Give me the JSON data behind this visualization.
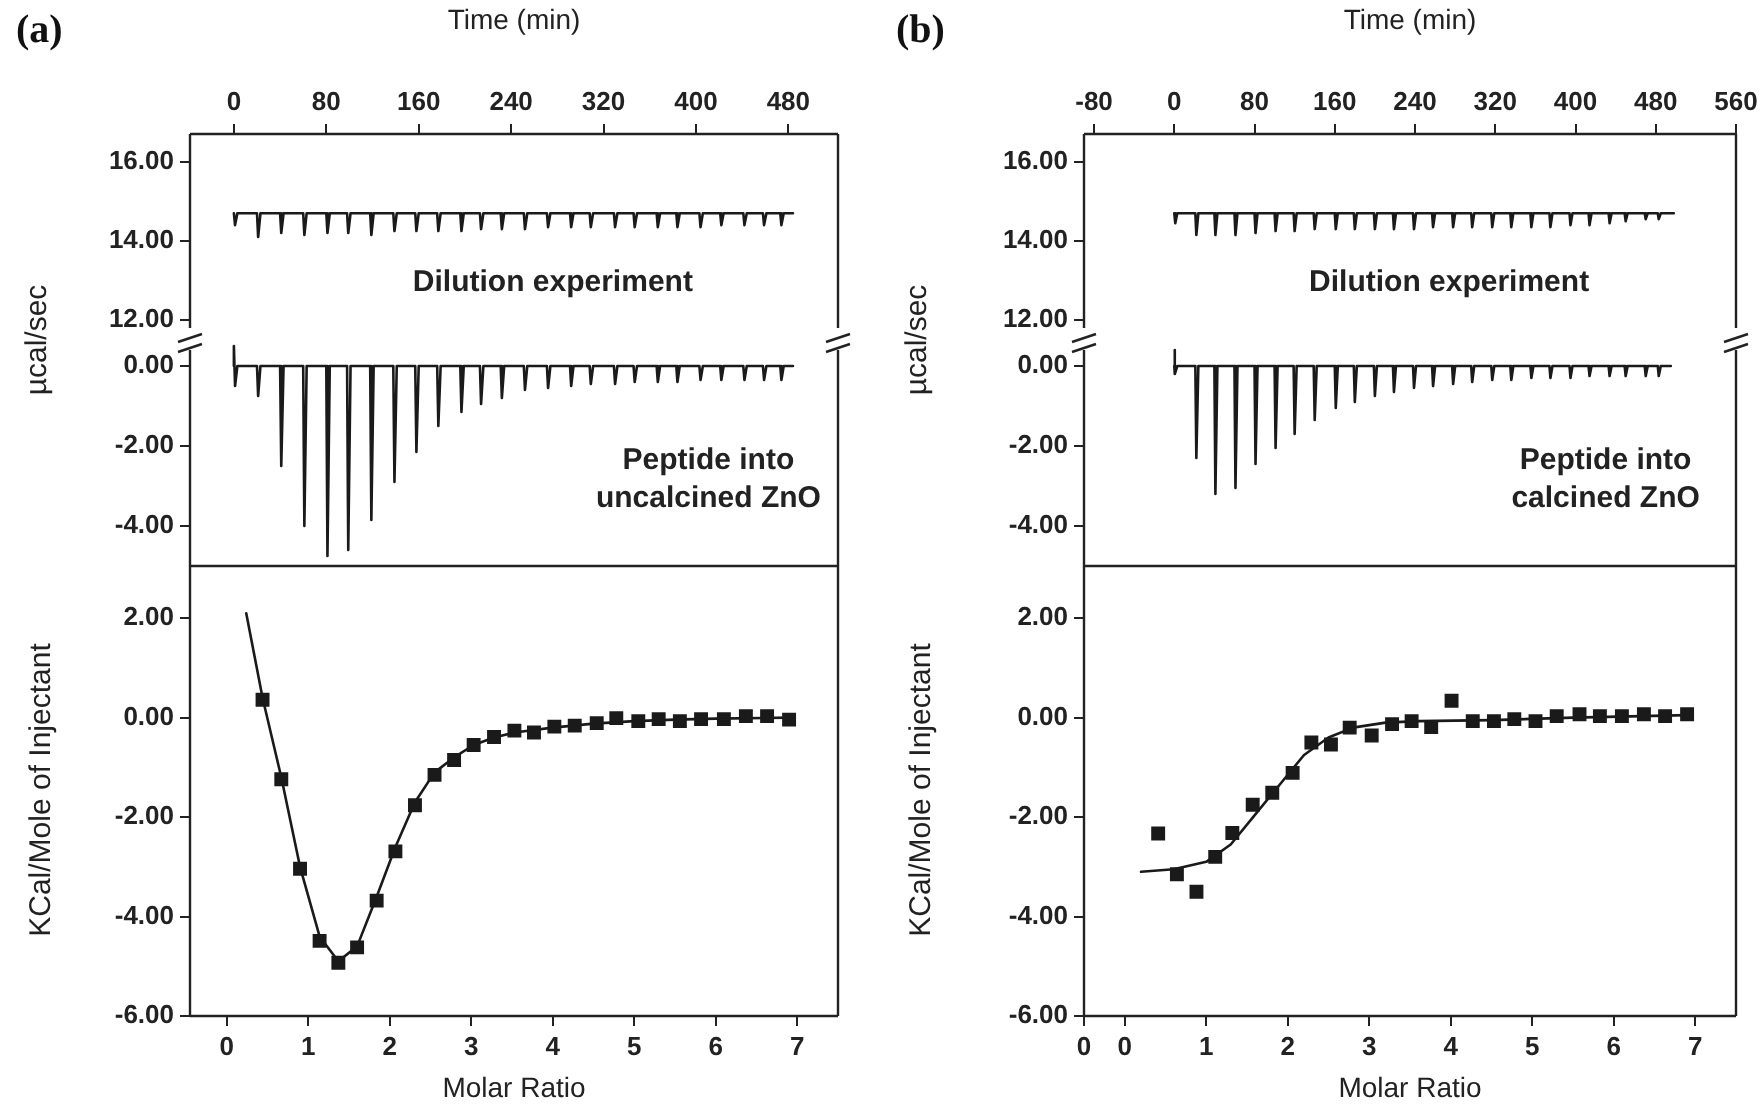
{
  "chart_data": [
    {
      "type": "line",
      "title": "(a)",
      "xlabel": "Time (min)",
      "annotations": [
        "Dilution experiment"
      ],
      "xlim": [
        -38,
        523
      ],
      "xticks": [
        0,
        80,
        160,
        240,
        320,
        400,
        480
      ],
      "ylim": [
        11.5,
        16.7
      ],
      "yticks": [
        {
          "value": 12,
          "label": "12.00"
        },
        {
          "value": 14,
          "label": "14.00"
        },
        {
          "value": 16,
          "label": "16.00"
        }
      ],
      "series": [
        {
          "color": "#1a1a1a",
          "x": [
            0,
            1,
            3,
            20,
            21,
            23,
            40,
            41,
            43,
            60,
            61,
            63,
            80,
            81,
            83,
            98,
            99,
            101,
            118,
            119,
            121,
            138,
            139,
            141,
            157,
            158,
            160,
            176,
            177,
            179,
            196,
            197,
            199,
            213,
            214,
            216,
            231,
            232,
            234,
            251,
            252,
            254,
            271,
            272,
            274,
            291,
            292,
            294,
            308,
            309,
            311,
            329,
            330,
            332,
            346,
            347,
            349,
            366,
            367,
            369,
            383,
            384,
            386,
            403,
            404,
            406,
            421,
            422,
            424,
            441,
            442,
            444,
            458,
            459,
            461,
            473,
            474,
            476,
            484
          ],
          "values": [
            14.7,
            14.4,
            14.7,
            14.7,
            14.1,
            14.7,
            14.7,
            14.2,
            14.7,
            14.7,
            14.15,
            14.7,
            14.7,
            14.2,
            14.7,
            14.7,
            14.2,
            14.7,
            14.7,
            14.15,
            14.7,
            14.7,
            14.25,
            14.7,
            14.7,
            14.25,
            14.7,
            14.7,
            14.25,
            14.7,
            14.7,
            14.25,
            14.7,
            14.7,
            14.3,
            14.7,
            14.7,
            14.3,
            14.7,
            14.7,
            14.3,
            14.7,
            14.7,
            14.35,
            14.7,
            14.7,
            14.35,
            14.7,
            14.7,
            14.35,
            14.7,
            14.7,
            14.35,
            14.7,
            14.7,
            14.35,
            14.7,
            14.7,
            14.35,
            14.7,
            14.7,
            14.35,
            14.7,
            14.7,
            14.35,
            14.7,
            14.7,
            14.4,
            14.7,
            14.7,
            14.4,
            14.7,
            14.7,
            14.4,
            14.7,
            14.7,
            14.4,
            14.7,
            14.7
          ]
        }
      ]
    },
    {
      "type": "line",
      "ylabel": "µcal/sec",
      "annotations": [
        "Peptide into uncalcined ZnO"
      ],
      "tick_labels": "y",
      "xlim": [
        -38,
        523
      ],
      "xticks": [
        0,
        80,
        160,
        240,
        320,
        400,
        480
      ],
      "ylim": [
        -5,
        0.65
      ],
      "yticks": [
        {
          "value": -4,
          "label": "-4.00"
        },
        {
          "value": -2,
          "label": "-2.00"
        },
        {
          "value": 0,
          "label": "0.00"
        }
      ],
      "series": [
        {
          "color": "#1a1a1a",
          "x": [
            0,
            0,
            1,
            3,
            20,
            21,
            23,
            40,
            41,
            43,
            60,
            61,
            63,
            80,
            81,
            83,
            98,
            99,
            101,
            118,
            119,
            121,
            138,
            139,
            141,
            157,
            158,
            160,
            176,
            177,
            179,
            196,
            197,
            199,
            213,
            214,
            216,
            231,
            232,
            234,
            251,
            252,
            254,
            271,
            272,
            274,
            291,
            292,
            294,
            308,
            309,
            311,
            329,
            330,
            332,
            346,
            347,
            349,
            366,
            367,
            369,
            383,
            384,
            386,
            403,
            404,
            406,
            421,
            422,
            424,
            441,
            442,
            444,
            458,
            459,
            461,
            473,
            474,
            476,
            484
          ],
          "values": [
            0,
            0.5,
            -0.5,
            0,
            0,
            -0.75,
            0,
            0,
            -2.5,
            0,
            0,
            -4.0,
            0,
            0,
            -4.75,
            0,
            0,
            -4.6,
            0,
            0,
            -3.85,
            0,
            0,
            -2.9,
            0,
            0,
            -2.15,
            0,
            0,
            -1.5,
            0,
            0,
            -1.15,
            0,
            0,
            -0.95,
            0,
            0,
            -0.8,
            0,
            0,
            -0.6,
            0,
            0,
            -0.55,
            0,
            0,
            -0.5,
            0,
            0,
            -0.45,
            0,
            0,
            -0.45,
            0,
            0,
            -0.4,
            0,
            0,
            -0.4,
            0,
            0,
            -0.4,
            0,
            0,
            -0.35,
            0,
            0,
            -0.35,
            0,
            0,
            -0.35,
            0,
            0,
            -0.35,
            0,
            0,
            -0.35,
            0,
            0
          ]
        }
      ]
    },
    {
      "type": "scatter",
      "xlabel": "Molar Ratio",
      "ylabel": "KCal/Mole of Injectant",
      "xlim": [
        -0.45,
        7.5
      ],
      "xticks": [
        0,
        1,
        2,
        3,
        4,
        5,
        6,
        7
      ],
      "ylim": [
        -6,
        3.05
      ],
      "yticks": [
        {
          "value": -6,
          "label": "-6.00"
        },
        {
          "value": -4,
          "label": "-4.00"
        },
        {
          "value": -2,
          "label": "-2.00"
        },
        {
          "value": 0,
          "label": "0.00"
        },
        {
          "value": 2,
          "label": "2.00"
        }
      ],
      "series": [
        {
          "color": "#1a1a1a",
          "marker": "square",
          "x": [
            0.44,
            0.67,
            0.9,
            1.14,
            1.37,
            1.6,
            1.84,
            2.07,
            2.31,
            2.55,
            2.79,
            3.03,
            3.28,
            3.53,
            3.77,
            4.02,
            4.27,
            4.54,
            4.78,
            5.05,
            5.3,
            5.56,
            5.82,
            6.1,
            6.37,
            6.63,
            6.9
          ],
          "values": [
            0.36,
            -1.24,
            -3.04,
            -4.49,
            -4.93,
            -4.62,
            -3.68,
            -2.69,
            -1.76,
            -1.15,
            -0.85,
            -0.55,
            -0.39,
            -0.26,
            -0.3,
            -0.18,
            -0.16,
            -0.11,
            -0.01,
            -0.07,
            -0.03,
            -0.07,
            -0.03,
            -0.03,
            0.03,
            0.03,
            -0.04
          ]
        },
        {
          "type": "line",
          "color": "#1a1a1a",
          "x": [
            0.24,
            0.44,
            0.67,
            0.9,
            1.14,
            1.37,
            1.6,
            1.84,
            2.07,
            2.31,
            2.55,
            2.79,
            3.03,
            3.28,
            3.53,
            4.0,
            4.5,
            5.0,
            5.5,
            6.0,
            6.9
          ],
          "values": [
            2.1,
            0.4,
            -1.2,
            -3.0,
            -4.4,
            -4.9,
            -4.6,
            -3.6,
            -2.6,
            -1.7,
            -1.1,
            -0.8,
            -0.55,
            -0.4,
            -0.3,
            -0.2,
            -0.12,
            -0.07,
            -0.04,
            -0.02,
            0
          ]
        }
      ]
    },
    {
      "type": "line",
      "title": "(b)",
      "xlabel": "Time (min)",
      "annotations": [
        "Dilution experiment"
      ],
      "xlim": [
        -90,
        560
      ],
      "xticks": [
        -80,
        0,
        80,
        160,
        240,
        320,
        400,
        480,
        560
      ],
      "ylim": [
        11.5,
        16.7
      ],
      "yticks": [
        {
          "value": 12,
          "label": "12.00"
        },
        {
          "value": 14,
          "label": "14.00"
        },
        {
          "value": 16,
          "label": "16.00"
        }
      ],
      "series": [
        {
          "color": "#1a1a1a",
          "x": [
            0,
            1,
            3,
            21,
            22,
            24,
            40,
            41,
            43,
            60,
            61,
            63,
            80,
            81,
            83,
            100,
            101,
            103,
            119,
            120,
            122,
            139,
            140,
            142,
            160,
            161,
            163,
            179,
            180,
            182,
            199,
            200,
            202,
            218,
            219,
            221,
            238,
            239,
            241,
            257,
            258,
            260,
            277,
            278,
            280,
            296,
            297,
            299,
            316,
            317,
            319,
            335,
            336,
            338,
            355,
            356,
            358,
            374,
            375,
            377,
            394,
            395,
            397,
            413,
            414,
            416,
            433,
            434,
            436,
            449,
            450,
            452,
            469,
            470,
            472,
            482,
            483,
            485,
            498
          ],
          "values": [
            14.7,
            14.45,
            14.7,
            14.7,
            14.15,
            14.7,
            14.7,
            14.15,
            14.7,
            14.7,
            14.15,
            14.7,
            14.7,
            14.2,
            14.7,
            14.7,
            14.25,
            14.7,
            14.7,
            14.25,
            14.7,
            14.7,
            14.3,
            14.7,
            14.7,
            14.3,
            14.7,
            14.7,
            14.3,
            14.7,
            14.7,
            14.3,
            14.7,
            14.7,
            14.3,
            14.7,
            14.7,
            14.3,
            14.7,
            14.7,
            14.35,
            14.7,
            14.7,
            14.35,
            14.7,
            14.7,
            14.35,
            14.7,
            14.7,
            14.35,
            14.7,
            14.7,
            14.35,
            14.7,
            14.7,
            14.35,
            14.7,
            14.7,
            14.35,
            14.7,
            14.7,
            14.4,
            14.7,
            14.7,
            14.4,
            14.7,
            14.7,
            14.45,
            14.7,
            14.7,
            14.5,
            14.7,
            14.7,
            14.55,
            14.7,
            14.7,
            14.55,
            14.7,
            14.7
          ]
        }
      ]
    },
    {
      "type": "line",
      "ylabel": "µcal/sec",
      "annotations": [
        "Peptide into calcined ZnO"
      ],
      "tick_labels": "y",
      "xlim": [
        -90,
        560
      ],
      "xticks": [
        -80,
        0,
        80,
        160,
        240,
        320,
        400,
        480,
        560
      ],
      "ylim": [
        -5,
        0.65
      ],
      "yticks": [
        {
          "value": -4,
          "label": "-4.00"
        },
        {
          "value": -2,
          "label": "-2.00"
        },
        {
          "value": 0,
          "label": "0.00"
        }
      ],
      "series": [
        {
          "color": "#1a1a1a",
          "x": [
            0,
            0,
            1,
            3,
            21,
            22,
            24,
            40,
            41,
            43,
            60,
            61,
            63,
            80,
            81,
            83,
            100,
            101,
            103,
            119,
            120,
            122,
            139,
            140,
            142,
            160,
            161,
            163,
            179,
            180,
            182,
            199,
            200,
            202,
            218,
            219,
            221,
            238,
            239,
            241,
            257,
            258,
            260,
            277,
            278,
            280,
            296,
            297,
            299,
            316,
            317,
            319,
            335,
            336,
            338,
            355,
            356,
            358,
            374,
            375,
            377,
            394,
            395,
            397,
            413,
            414,
            416,
            433,
            434,
            436,
            449,
            450,
            452,
            469,
            470,
            472,
            482,
            483,
            485,
            495
          ],
          "values": [
            0,
            0.4,
            -0.2,
            0,
            0,
            -2.3,
            0,
            0,
            -3.2,
            0,
            0,
            -3.05,
            0,
            0,
            -2.45,
            0,
            0,
            -2.05,
            0,
            0,
            -1.7,
            0,
            0,
            -1.35,
            0,
            0,
            -1.05,
            0,
            0,
            -0.9,
            0,
            0,
            -0.75,
            0,
            0,
            -0.65,
            0,
            0,
            -0.55,
            0,
            0,
            -0.5,
            0,
            0,
            -0.45,
            0,
            0,
            -0.4,
            0,
            0,
            -0.35,
            0,
            0,
            -0.35,
            0,
            0,
            -0.3,
            0,
            0,
            -0.3,
            0,
            0,
            -0.3,
            0,
            0,
            -0.25,
            0,
            0,
            -0.25,
            0,
            0,
            -0.25,
            0,
            0,
            -0.25,
            0,
            0,
            -0.25,
            0,
            0
          ]
        }
      ]
    },
    {
      "type": "scatter",
      "xlabel": "Molar Ratio",
      "ylabel": "KCal/Mole of Injectant",
      "xlim": [
        -0.5,
        7.5
      ],
      "xticks": [
        {
          "value": -0.5,
          "label": "0"
        },
        0,
        1,
        2,
        3,
        4,
        5,
        6,
        7
      ],
      "ylim": [
        -6,
        3.05
      ],
      "yticks": [
        {
          "value": -6,
          "label": "-6.00"
        },
        {
          "value": -4,
          "label": "-4.00"
        },
        {
          "value": -2,
          "label": "-2.00"
        },
        {
          "value": 0,
          "label": "0.00"
        },
        {
          "value": 2,
          "label": "2.00"
        }
      ],
      "series": [
        {
          "color": "#1a1a1a",
          "marker": "square",
          "x": [
            0.41,
            0.64,
            0.88,
            1.11,
            1.32,
            1.57,
            1.81,
            2.06,
            2.29,
            2.53,
            2.76,
            3.03,
            3.28,
            3.52,
            3.76,
            4.01,
            4.27,
            4.53,
            4.78,
            5.04,
            5.3,
            5.58,
            5.83,
            6.1,
            6.37,
            6.63,
            6.9
          ],
          "values": [
            -2.33,
            -3.15,
            -3.5,
            -2.8,
            -2.32,
            -1.75,
            -1.51,
            -1.11,
            -0.5,
            -0.54,
            -0.2,
            -0.36,
            -0.13,
            -0.07,
            -0.19,
            0.34,
            -0.07,
            -0.07,
            -0.03,
            -0.07,
            0.03,
            0.07,
            0.03,
            0.03,
            0.07,
            0.03,
            0.07
          ]
        },
        {
          "type": "line",
          "color": "#1a1a1a",
          "x": [
            0.2,
            0.6,
            1.0,
            1.3,
            1.6,
            1.9,
            2.2,
            2.5,
            2.8,
            3.2,
            3.6,
            4.5,
            5.5,
            6.9
          ],
          "values": [
            -3.1,
            -3.05,
            -2.9,
            -2.55,
            -1.95,
            -1.35,
            -0.75,
            -0.4,
            -0.2,
            -0.1,
            -0.07,
            -0.05,
            0,
            0.05
          ]
        }
      ]
    }
  ]
}
